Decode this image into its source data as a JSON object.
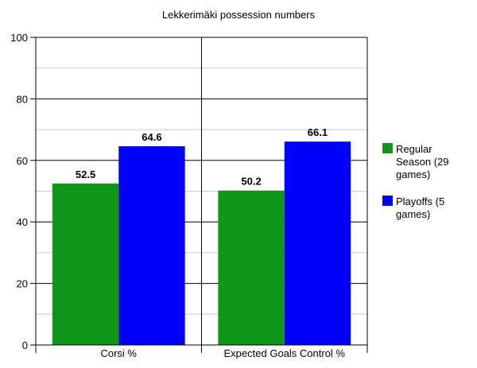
{
  "chart_data": {
    "type": "bar",
    "title": "Lekkerimäki possession numbers",
    "categories": [
      "Corsi %",
      "Expected Goals Control %"
    ],
    "series": [
      {
        "name": "Regular Season (29 games)",
        "legend_lines": [
          "Regular",
          "Season (29",
          "games)"
        ],
        "color": "#109618",
        "values": [
          52.5,
          50.2
        ]
      },
      {
        "name": "Playoffs (5 games)",
        "legend_lines": [
          "Playoffs (5",
          "games)"
        ],
        "color": "#0000ff",
        "values": [
          64.6,
          66.1
        ]
      }
    ],
    "ylim": [
      0,
      100
    ],
    "yticks": [
      0,
      20,
      40,
      60,
      80,
      100
    ],
    "grid": true,
    "legend_position": "right",
    "xlabel": "",
    "ylabel": ""
  }
}
